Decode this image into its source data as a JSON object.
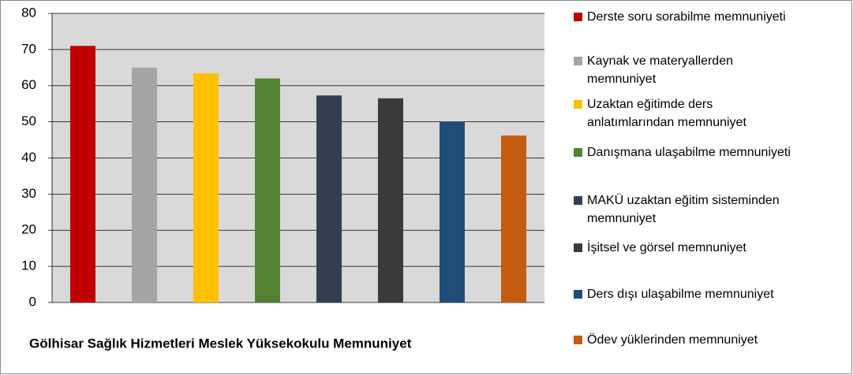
{
  "chart_data": {
    "type": "bar",
    "title": "Gölhisar Sağlık Hizmetleri Meslek Yüksekokulu Memnuniyet",
    "series": [
      {
        "name": "Derste soru sorabilme memnuniyeti",
        "color": "#c00000",
        "values": [
          71
        ]
      },
      {
        "name": "Kaynak ve materyallerden memnuniyet",
        "color": "#a5a5a5",
        "values": [
          65
        ]
      },
      {
        "name": "Uzaktan eğitimde ders anlatımlarından memnuniyet",
        "color": "#ffc000",
        "values": [
          63.4
        ]
      },
      {
        "name": "Danışmana ulaşabilme memnuniyeti",
        "color": "#548235",
        "values": [
          62
        ]
      },
      {
        "name": "MAKÜ uzaktan eğitim sisteminden memnuniyet",
        "color": "#333f50",
        "values": [
          57.3
        ]
      },
      {
        "name": "İşitsel ve görsel memnuniyet",
        "color": "#3a3a3a",
        "values": [
          56.5
        ]
      },
      {
        "name": "Ders dışı ulaşabilme memnuniyet",
        "color": "#1f4e79",
        "values": [
          50
        ]
      },
      {
        "name": "Ödev yüklerinden memnuniyet",
        "color": "#c55a11",
        "values": [
          46.2
        ]
      }
    ],
    "ylim": [
      0,
      80
    ],
    "yticks": [
      0,
      10,
      20,
      30,
      40,
      50,
      60,
      70,
      80
    ],
    "grid": true,
    "legend": "right"
  }
}
